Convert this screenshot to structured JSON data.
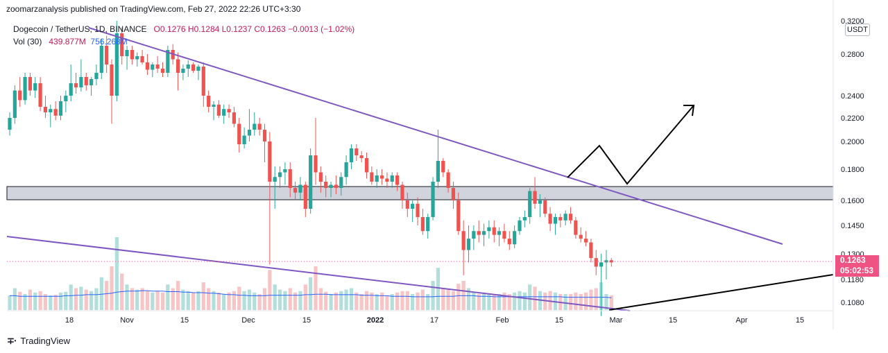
{
  "header": {
    "published_text": "zoomarzanalysis published on TradingView.com, Feb 27, 2022 22:26 UTC+3:30"
  },
  "legend": {
    "symbol": "Dogecoin / TetherUS, 1D, BINANCE",
    "ohlc": "O0.1276  H0.1284  L0.1237  C0.1263  −0.0013 (−1.02%)",
    "vol_label": "Vol (30)",
    "vol_value": "439.877M",
    "vol_ma": "756.268M"
  },
  "axis": {
    "unit": "USDT"
  },
  "price_tag": {
    "price": "0.1263",
    "countdown": "05:02:53"
  },
  "footer": {
    "brand": "TradingView",
    "icon": "tradingview-logo-icon"
  },
  "colors": {
    "up": "#26a69a",
    "down": "#ef5350",
    "trendline": "#7e57c2",
    "projection": "#000000",
    "zone": "#d1d4dc",
    "vol_ma": "#2962ff"
  },
  "chart_data": {
    "type": "candlestick",
    "symbol": "DOGEUSDT",
    "timeframe": "1D",
    "y_ticks": [
      0.32,
      0.28,
      0.24,
      0.22,
      0.2,
      0.18,
      0.16,
      0.145,
      0.13,
      0.118,
      0.108
    ],
    "x_ticks": [
      "18",
      "Nov",
      "15",
      "Dec",
      "15",
      "2022",
      "17",
      "Feb",
      "15",
      "Mar",
      "15",
      "Apr",
      "15"
    ],
    "current_price": 0.1263,
    "support_zone": [
      0.16,
      0.169
    ],
    "candles": [
      [
        0.21,
        0.225,
        0.205,
        0.22
      ],
      [
        0.22,
        0.25,
        0.215,
        0.245
      ],
      [
        0.245,
        0.258,
        0.23,
        0.236
      ],
      [
        0.236,
        0.262,
        0.232,
        0.258
      ],
      [
        0.258,
        0.262,
        0.24,
        0.245
      ],
      [
        0.245,
        0.258,
        0.238,
        0.252
      ],
      [
        0.252,
        0.258,
        0.226,
        0.23
      ],
      [
        0.23,
        0.24,
        0.22,
        0.225
      ],
      [
        0.225,
        0.232,
        0.212,
        0.228
      ],
      [
        0.228,
        0.235,
        0.218,
        0.222
      ],
      [
        0.222,
        0.24,
        0.218,
        0.235
      ],
      [
        0.235,
        0.245,
        0.225,
        0.24
      ],
      [
        0.24,
        0.27,
        0.235,
        0.252
      ],
      [
        0.252,
        0.262,
        0.242,
        0.248
      ],
      [
        0.248,
        0.275,
        0.244,
        0.258
      ],
      [
        0.258,
        0.262,
        0.245,
        0.25
      ],
      [
        0.25,
        0.258,
        0.24,
        0.256
      ],
      [
        0.256,
        0.27,
        0.25,
        0.262
      ],
      [
        0.262,
        0.298,
        0.256,
        0.29
      ],
      [
        0.29,
        0.302,
        0.262,
        0.27
      ],
      [
        0.27,
        0.275,
        0.215,
        0.24
      ],
      [
        0.24,
        0.32,
        0.235,
        0.305
      ],
      [
        0.305,
        0.312,
        0.27,
        0.278
      ],
      [
        0.278,
        0.29,
        0.265,
        0.285
      ],
      [
        0.285,
        0.29,
        0.27,
        0.275
      ],
      [
        0.275,
        0.282,
        0.268,
        0.278
      ],
      [
        0.278,
        0.285,
        0.27,
        0.272
      ],
      [
        0.272,
        0.28,
        0.26,
        0.265
      ],
      [
        0.265,
        0.272,
        0.258,
        0.27
      ],
      [
        0.27,
        0.278,
        0.262,
        0.266
      ],
      [
        0.266,
        0.272,
        0.258,
        0.262
      ],
      [
        0.262,
        0.29,
        0.258,
        0.285
      ],
      [
        0.285,
        0.292,
        0.27,
        0.275
      ],
      [
        0.275,
        0.282,
        0.245,
        0.262
      ],
      [
        0.262,
        0.27,
        0.255,
        0.266
      ],
      [
        0.266,
        0.274,
        0.258,
        0.27
      ],
      [
        0.27,
        0.272,
        0.262,
        0.264
      ],
      [
        0.264,
        0.27,
        0.255,
        0.268
      ],
      [
        0.268,
        0.272,
        0.23,
        0.24
      ],
      [
        0.24,
        0.245,
        0.225,
        0.23
      ],
      [
        0.23,
        0.235,
        0.218,
        0.232
      ],
      [
        0.232,
        0.236,
        0.22,
        0.222
      ],
      [
        0.222,
        0.232,
        0.215,
        0.228
      ],
      [
        0.228,
        0.232,
        0.22,
        0.225
      ],
      [
        0.225,
        0.23,
        0.212,
        0.215
      ],
      [
        0.215,
        0.22,
        0.192,
        0.198
      ],
      [
        0.198,
        0.212,
        0.195,
        0.205
      ],
      [
        0.205,
        0.228,
        0.2,
        0.21
      ],
      [
        0.21,
        0.225,
        0.205,
        0.215
      ],
      [
        0.215,
        0.22,
        0.205,
        0.21
      ],
      [
        0.21,
        0.215,
        0.185,
        0.2
      ],
      [
        0.2,
        0.208,
        0.125,
        0.172
      ],
      [
        0.172,
        0.182,
        0.155,
        0.175
      ],
      [
        0.175,
        0.182,
        0.168,
        0.178
      ],
      [
        0.178,
        0.185,
        0.17,
        0.18
      ],
      [
        0.18,
        0.185,
        0.162,
        0.168
      ],
      [
        0.168,
        0.172,
        0.16,
        0.165
      ],
      [
        0.165,
        0.175,
        0.16,
        0.17
      ],
      [
        0.17,
        0.172,
        0.15,
        0.155
      ],
      [
        0.155,
        0.195,
        0.152,
        0.19
      ],
      [
        0.19,
        0.22,
        0.17,
        0.178
      ],
      [
        0.178,
        0.182,
        0.165,
        0.172
      ],
      [
        0.172,
        0.176,
        0.162,
        0.168
      ],
      [
        0.168,
        0.172,
        0.162,
        0.17
      ],
      [
        0.17,
        0.176,
        0.164,
        0.168
      ],
      [
        0.168,
        0.178,
        0.163,
        0.175
      ],
      [
        0.175,
        0.19,
        0.17,
        0.185
      ],
      [
        0.185,
        0.198,
        0.18,
        0.195
      ],
      [
        0.195,
        0.198,
        0.186,
        0.19
      ],
      [
        0.19,
        0.193,
        0.185,
        0.188
      ],
      [
        0.188,
        0.192,
        0.174,
        0.178
      ],
      [
        0.178,
        0.182,
        0.17,
        0.172
      ],
      [
        0.172,
        0.18,
        0.168,
        0.176
      ],
      [
        0.176,
        0.18,
        0.17,
        0.174
      ],
      [
        0.174,
        0.178,
        0.168,
        0.172
      ],
      [
        0.172,
        0.178,
        0.168,
        0.176
      ],
      [
        0.176,
        0.178,
        0.166,
        0.17
      ],
      [
        0.17,
        0.172,
        0.155,
        0.16
      ],
      [
        0.16,
        0.165,
        0.15,
        0.155
      ],
      [
        0.155,
        0.16,
        0.147,
        0.158
      ],
      [
        0.158,
        0.162,
        0.145,
        0.15
      ],
      [
        0.15,
        0.155,
        0.14,
        0.142
      ],
      [
        0.142,
        0.152,
        0.138,
        0.15
      ],
      [
        0.15,
        0.175,
        0.148,
        0.172
      ],
      [
        0.172,
        0.21,
        0.168,
        0.186
      ],
      [
        0.186,
        0.188,
        0.175,
        0.178
      ],
      [
        0.178,
        0.18,
        0.165,
        0.168
      ],
      [
        0.168,
        0.172,
        0.155,
        0.16
      ],
      [
        0.16,
        0.165,
        0.14,
        0.142
      ],
      [
        0.142,
        0.148,
        0.12,
        0.132
      ],
      [
        0.132,
        0.145,
        0.126,
        0.138
      ],
      [
        0.138,
        0.145,
        0.132,
        0.142
      ],
      [
        0.142,
        0.148,
        0.136,
        0.14
      ],
      [
        0.14,
        0.146,
        0.134,
        0.142
      ],
      [
        0.142,
        0.148,
        0.138,
        0.144
      ],
      [
        0.144,
        0.148,
        0.136,
        0.14
      ],
      [
        0.14,
        0.144,
        0.134,
        0.142
      ],
      [
        0.142,
        0.146,
        0.136,
        0.138
      ],
      [
        0.138,
        0.142,
        0.132,
        0.135
      ],
      [
        0.135,
        0.145,
        0.133,
        0.142
      ],
      [
        0.142,
        0.15,
        0.14,
        0.148
      ],
      [
        0.148,
        0.154,
        0.144,
        0.15
      ],
      [
        0.15,
        0.168,
        0.146,
        0.166
      ],
      [
        0.166,
        0.175,
        0.155,
        0.158
      ],
      [
        0.158,
        0.164,
        0.15,
        0.16
      ],
      [
        0.16,
        0.162,
        0.15,
        0.152
      ],
      [
        0.152,
        0.156,
        0.142,
        0.146
      ],
      [
        0.146,
        0.152,
        0.14,
        0.15
      ],
      [
        0.15,
        0.152,
        0.144,
        0.148
      ],
      [
        0.148,
        0.154,
        0.145,
        0.152
      ],
      [
        0.152,
        0.156,
        0.146,
        0.148
      ],
      [
        0.148,
        0.15,
        0.138,
        0.14
      ],
      [
        0.14,
        0.144,
        0.136,
        0.138
      ],
      [
        0.138,
        0.142,
        0.134,
        0.136
      ],
      [
        0.136,
        0.138,
        0.126,
        0.128
      ],
      [
        0.128,
        0.132,
        0.12,
        0.124
      ],
      [
        0.124,
        0.13,
        0.102,
        0.126
      ],
      [
        0.126,
        0.132,
        0.118,
        0.127
      ],
      [
        0.127,
        0.128,
        0.124,
        0.126
      ]
    ],
    "volume": [
      0.2,
      0.3,
      0.25,
      0.22,
      0.28,
      0.24,
      0.26,
      0.22,
      0.2,
      0.21,
      0.24,
      0.25,
      0.35,
      0.3,
      0.32,
      0.28,
      0.26,
      0.3,
      0.45,
      0.4,
      0.6,
      1.0,
      0.5,
      0.35,
      0.3,
      0.28,
      0.3,
      0.26,
      0.24,
      0.26,
      0.24,
      0.35,
      0.3,
      0.4,
      0.28,
      0.26,
      0.24,
      0.26,
      0.38,
      0.3,
      0.26,
      0.24,
      0.22,
      0.24,
      0.26,
      0.32,
      0.26,
      0.28,
      0.24,
      0.22,
      0.3,
      0.55,
      0.35,
      0.28,
      0.26,
      0.3,
      0.24,
      0.26,
      0.35,
      0.45,
      0.6,
      0.3,
      0.25,
      0.22,
      0.24,
      0.26,
      0.28,
      0.3,
      0.24,
      0.22,
      0.26,
      0.24,
      0.22,
      0.24,
      0.2,
      0.22,
      0.24,
      0.26,
      0.26,
      0.22,
      0.24,
      0.28,
      0.22,
      0.4,
      0.58,
      0.3,
      0.28,
      0.26,
      0.36,
      0.4,
      0.3,
      0.24,
      0.22,
      0.24,
      0.22,
      0.22,
      0.22,
      0.24,
      0.22,
      0.24,
      0.26,
      0.24,
      0.35,
      0.32,
      0.26,
      0.24,
      0.26,
      0.24,
      0.22,
      0.22,
      0.22,
      0.24,
      0.22,
      0.24,
      0.28,
      0.3,
      0.38,
      0.22,
      0.2
    ],
    "volume_ma": [
      0.28,
      0.28,
      0.27,
      0.27,
      0.27,
      0.27,
      0.27,
      0.27,
      0.27,
      0.27,
      0.27,
      0.28,
      0.28,
      0.29,
      0.29,
      0.3,
      0.3,
      0.3,
      0.31,
      0.32,
      0.33,
      0.35,
      0.36,
      0.37,
      0.37,
      0.37,
      0.38,
      0.38,
      0.37,
      0.37,
      0.37,
      0.36,
      0.36,
      0.36,
      0.35,
      0.35,
      0.34,
      0.34,
      0.34,
      0.33,
      0.33,
      0.32,
      0.31,
      0.3,
      0.3,
      0.29,
      0.29,
      0.28,
      0.28,
      0.28,
      0.28,
      0.29,
      0.29,
      0.29,
      0.29,
      0.29,
      0.29,
      0.29,
      0.3,
      0.3,
      0.31,
      0.31,
      0.31,
      0.3,
      0.3,
      0.3,
      0.3,
      0.3,
      0.3,
      0.29,
      0.29,
      0.29,
      0.28,
      0.28,
      0.28,
      0.27,
      0.27,
      0.27,
      0.27,
      0.26,
      0.26,
      0.26,
      0.26,
      0.26,
      0.27,
      0.27,
      0.27,
      0.27,
      0.28,
      0.28,
      0.28,
      0.28,
      0.27,
      0.27,
      0.27,
      0.26,
      0.26,
      0.26,
      0.26,
      0.26,
      0.26,
      0.26,
      0.26,
      0.26,
      0.26,
      0.26,
      0.26,
      0.26,
      0.26,
      0.25,
      0.25,
      0.25,
      0.25,
      0.25,
      0.25,
      0.25,
      0.25,
      0.25,
      0.24
    ]
  }
}
